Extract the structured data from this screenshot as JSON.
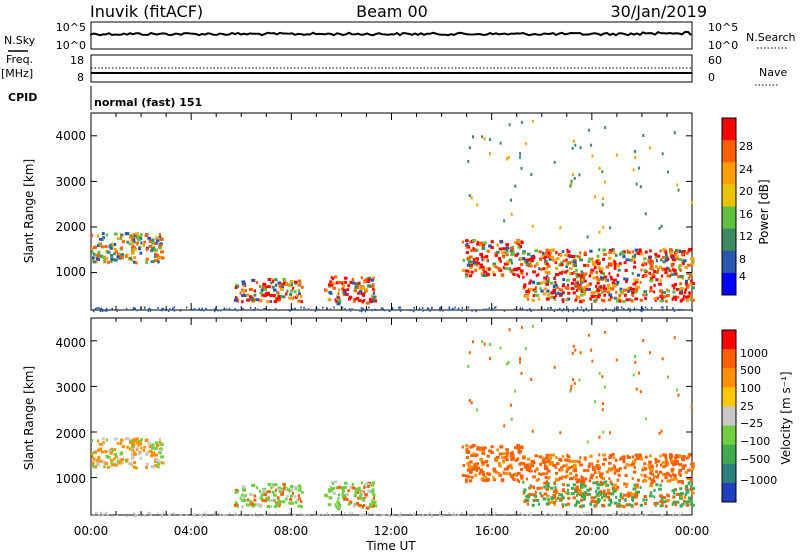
{
  "header": {
    "station": "Inuvik (fitACF)",
    "beam": "Beam 00",
    "date": "30/Jan/2019"
  },
  "sky_panel": {
    "left_label": "N.Sky",
    "left_ticks": [
      "10^5",
      "10^0"
    ],
    "right_label": "N.Search",
    "right_ticks": [
      "10^5",
      "10^0"
    ]
  },
  "freq_panel": {
    "left_label_1": "Freq.",
    "left_label_2": "[MHz]",
    "left_ticks": [
      "18",
      "8"
    ],
    "right_label": "Nave",
    "right_ticks": [
      "60",
      "0"
    ]
  },
  "cpid": {
    "label": "CPID",
    "mode": "normal (fast) 151"
  },
  "power_panel": {
    "ylabel": "Slant Range [km]",
    "yticks": [
      "4000",
      "3000",
      "2000",
      "1000"
    ],
    "cbar_label": "Power [dB]",
    "cbar_ticks": [
      "28",
      "24",
      "20",
      "16",
      "12",
      "8",
      "4"
    ],
    "colors": [
      "#0000ff",
      "#2a56b0",
      "#3b8a62",
      "#5fbf3f",
      "#e8c400",
      "#ff9f00",
      "#ff6000",
      "#ff0000"
    ]
  },
  "velocity_panel": {
    "ylabel": "Slant Range [km]",
    "yticks": [
      "4000",
      "3000",
      "2000",
      "1000"
    ],
    "cbar_label": "Velocity [m s⁻¹]",
    "cbar_ticks": [
      "1000",
      "500",
      "100",
      "25",
      "−25",
      "−100",
      "−500",
      "−1000"
    ],
    "colors": [
      "#1f3fbf",
      "#2f7f7f",
      "#3faa50",
      "#6fcf3f",
      "#c8c8c8",
      "#ffc800",
      "#ff9000",
      "#ff6000",
      "#ff0000"
    ]
  },
  "xaxis": {
    "label": "Time UT",
    "ticks": [
      "00:00",
      "04:00",
      "08:00",
      "12:00",
      "16:00",
      "20:00",
      "00:00"
    ]
  },
  "chart_data": {
    "type": "heatmap",
    "x_range_hours": [
      0,
      24
    ],
    "y_range_km": [
      180,
      4500
    ],
    "power_regions": [
      {
        "t0": 0.0,
        "t1": 2.8,
        "r0": 1200,
        "r1": 1850,
        "level": "medium"
      },
      {
        "t0": 5.7,
        "t1": 8.4,
        "r0": 350,
        "r1": 850,
        "level": "high"
      },
      {
        "t0": 9.3,
        "t1": 11.3,
        "r0": 300,
        "r1": 900,
        "level": "high"
      },
      {
        "t0": 14.8,
        "t1": 17.2,
        "r0": 900,
        "r1": 1700,
        "level": "high"
      },
      {
        "t0": 17.2,
        "t1": 24.0,
        "r0": 350,
        "r1": 1500,
        "level": "high"
      }
    ]
  }
}
